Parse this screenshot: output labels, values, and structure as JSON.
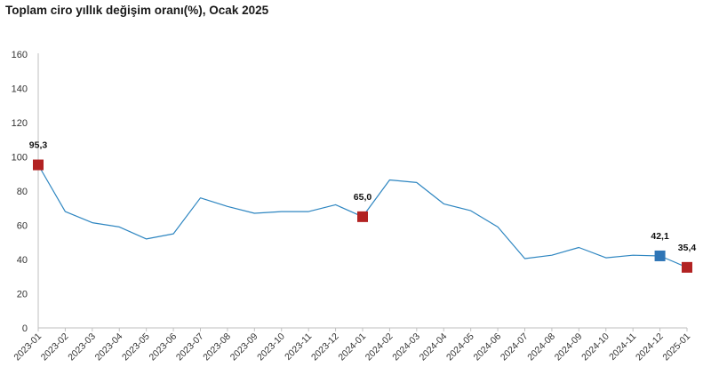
{
  "chart_data": {
    "type": "line",
    "title": "Toplam ciro yıllık değişim oranı(%), Ocak 2025",
    "xlabel": "",
    "ylabel": "",
    "ylim": [
      0,
      160
    ],
    "yticks": [
      0,
      20,
      40,
      60,
      80,
      100,
      120,
      140,
      160
    ],
    "grid": false,
    "legend": "none",
    "line_color": "#2E86C1",
    "x": [
      "2023-01",
      "2023-02",
      "2023-03",
      "2023-04",
      "2023-05",
      "2023-06",
      "2023-07",
      "2023-08",
      "2023-09",
      "2023-10",
      "2023-11",
      "2023-12",
      "2024-01",
      "2024-02",
      "2024-03",
      "2024-04",
      "2024-05",
      "2024-06",
      "2024-07",
      "2024-08",
      "2024-09",
      "2024-10",
      "2024-11",
      "2024-12",
      "2025-01"
    ],
    "values": [
      95.3,
      68,
      61.5,
      59,
      52,
      55,
      76,
      71,
      67,
      68,
      68,
      72,
      65.0,
      86.5,
      85,
      72.5,
      68.5,
      59,
      40.5,
      42.5,
      47,
      41,
      42.5,
      42.1,
      35.4
    ],
    "markers": [
      {
        "index": 0,
        "label": "95,3",
        "color": "#B22222"
      },
      {
        "index": 12,
        "label": "65,0",
        "color": "#B22222"
      },
      {
        "index": 23,
        "label": "42,1",
        "color": "#2E75B6"
      },
      {
        "index": 24,
        "label": "35,4",
        "color": "#B22222"
      }
    ]
  }
}
